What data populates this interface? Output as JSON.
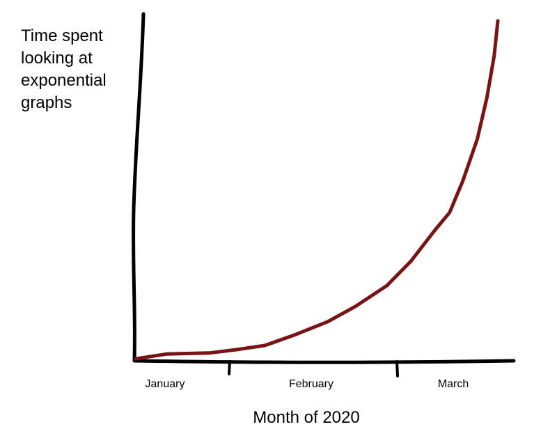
{
  "chart_data": {
    "type": "line",
    "ylabel": "Time spent looking at exponential graphs",
    "xlabel": "Month of 2020",
    "categories": [
      "January",
      "February",
      "March"
    ],
    "x": [
      0,
      0.26,
      0.61,
      0.84,
      1.07,
      1.3,
      1.59,
      1.82,
      2.08,
      2.28,
      2.48,
      2.6,
      2.71,
      2.83,
      2.91,
      2.97,
      3.0
    ],
    "series": [
      {
        "name": "Time spent",
        "color": "#7a1414",
        "values": [
          0.6,
          2.0,
          2.3,
          3.3,
          4.5,
          7.4,
          11.5,
          16.0,
          22.1,
          29.3,
          38.5,
          43.6,
          52.9,
          65.2,
          77.5,
          89.8,
          100
        ]
      }
    ],
    "xlim": [
      0,
      3
    ],
    "ylim": [
      0,
      100
    ]
  }
}
